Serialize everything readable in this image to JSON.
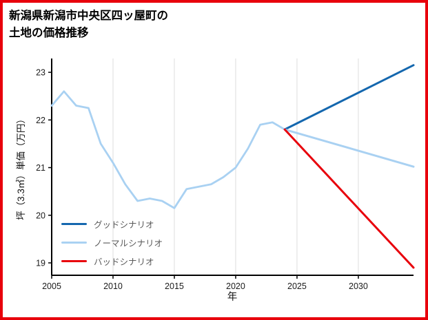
{
  "page": {
    "frame_color": "#e8000b",
    "background": "#ffffff"
  },
  "chart_data": {
    "type": "line",
    "title_lines": [
      "新潟県新潟市中央区四ッ屋町の",
      "土地の価格推移"
    ],
    "xlabel": "年",
    "ylabel": "坪（3.3㎡）単価（万円）",
    "x_ticks": [
      2005,
      2010,
      2015,
      2020,
      2025,
      2030
    ],
    "y_ticks": [
      19,
      20,
      21,
      22,
      23
    ],
    "xlim": [
      2005,
      2034.5
    ],
    "ylim": [
      18.74,
      23.29
    ],
    "grid": "vertical",
    "grid_color": "#dddddd",
    "axis_color": "#000000",
    "tick_label_color": "#1a1a1a",
    "series": [
      {
        "id": "history",
        "color": "#a9d1f2",
        "width": 2.8,
        "x": [
          2005,
          2006,
          2007,
          2008,
          2009,
          2010,
          2011,
          2012,
          2013,
          2014,
          2015,
          2016,
          2017,
          2018,
          2019,
          2020,
          2021,
          2022,
          2023,
          2024
        ],
        "values": [
          22.3,
          22.6,
          22.3,
          22.25,
          21.5,
          21.1,
          20.65,
          20.3,
          20.35,
          20.3,
          20.15,
          20.55,
          20.6,
          20.65,
          20.8,
          21.0,
          21.4,
          21.9,
          21.95,
          21.8
        ]
      },
      {
        "id": "good",
        "name": "グッドシナリオ",
        "color": "#1467ae",
        "width": 3,
        "x": [
          2024,
          2034.5
        ],
        "values": [
          21.8,
          23.15
        ]
      },
      {
        "id": "normal",
        "name": "ノーマルシナリオ",
        "color": "#a9d1f2",
        "width": 3,
        "x": [
          2024,
          2034.5
        ],
        "values": [
          21.8,
          21.02
        ]
      },
      {
        "id": "bad",
        "name": "バッドシナリオ",
        "color": "#e8000b",
        "width": 3,
        "x": [
          2024,
          2034.5
        ],
        "values": [
          21.8,
          18.9
        ]
      }
    ],
    "legend": [
      {
        "label": "グッドシナリオ",
        "color": "#1467ae"
      },
      {
        "label": "ノーマルシナリオ",
        "color": "#a9d1f2"
      },
      {
        "label": "バッドシナリオ",
        "color": "#e8000b"
      }
    ],
    "legend_position": "lower-left",
    "legend_text_color": "#595959"
  }
}
